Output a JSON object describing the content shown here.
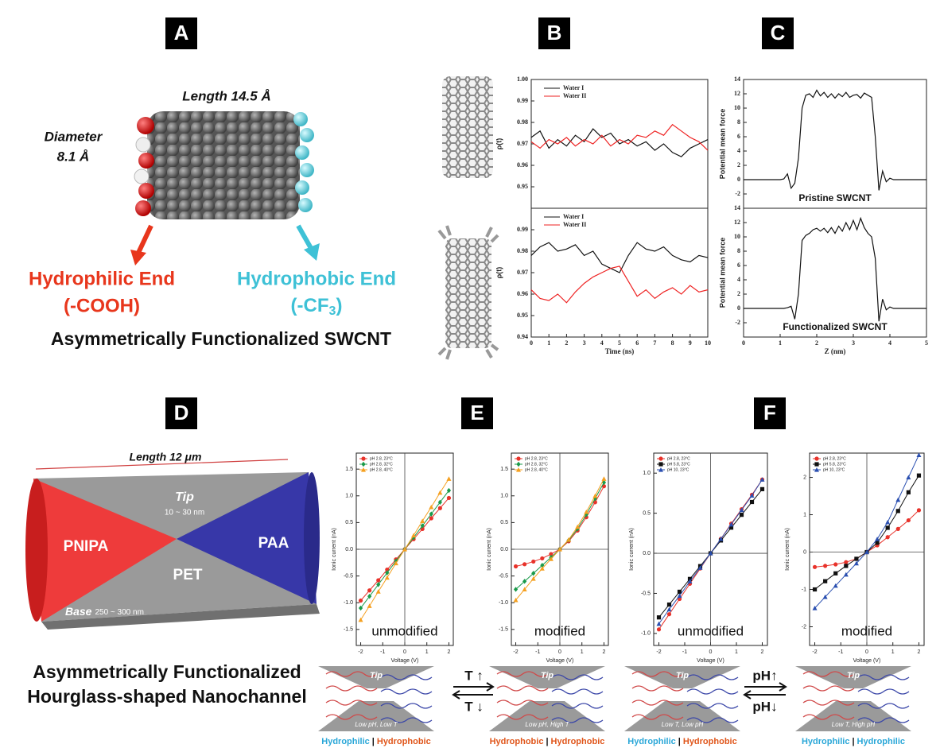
{
  "panel_labels": [
    "A",
    "B",
    "C",
    "D",
    "E",
    "F"
  ],
  "panel_a": {
    "length": "Length 14.5 Å",
    "diameter": [
      "Diameter",
      "8.1 Å"
    ],
    "hydrophilic_end": "Hydrophilic End",
    "hydrophilic_group": "(-COOH)",
    "hydrophobic_end": "Hydrophobic End",
    "hydrophobic_group": [
      "(-CF",
      "3",
      ")"
    ],
    "caption": "Asymmetrically Functionalized SWCNT"
  },
  "panel_d": {
    "length": "Length 12 μm",
    "tip": "Tip",
    "tip_size": "10 ~ 30 nm",
    "left": "PNIPA",
    "middle": "PET",
    "right": "PAA",
    "base": "Base",
    "base_size": "250 ~ 300 nm",
    "caption": [
      "Asymmetrically Functionalized",
      "Hourglass-shaped Nanochannel"
    ]
  },
  "schematics": [
    {
      "tip": "Tip",
      "condition": "Low pH, Low T",
      "caption": [
        {
          "text": "Hydrophilic",
          "color": "#2aa7d8"
        },
        {
          "text": "|",
          "color": "#111111"
        },
        {
          "text": "Hydrophobic",
          "color": "#e0561b"
        }
      ]
    },
    {
      "tip": "Tip",
      "condition": "Low pH, High T",
      "caption": [
        {
          "text": "Hydrophobic",
          "color": "#e0561b"
        },
        {
          "text": "|",
          "color": "#111111"
        },
        {
          "text": "Hydrophobic",
          "color": "#e0561b"
        }
      ]
    },
    {
      "tip": "Tip",
      "condition": "Low T, Low pH",
      "caption": [
        {
          "text": "Hydrophilic",
          "color": "#2aa7d8"
        },
        {
          "text": "|",
          "color": "#111111"
        },
        {
          "text": "Hydrophobic",
          "color": "#e0561b"
        }
      ]
    },
    {
      "tip": "Tip",
      "condition": "Low T, High pH",
      "caption": [
        {
          "text": "Hydrophilic",
          "color": "#2aa7d8"
        },
        {
          "text": "|",
          "color": "#111111"
        },
        {
          "text": "Hydrophilic",
          "color": "#2aa7d8"
        }
      ]
    }
  ],
  "switches": [
    {
      "up": "T ↑",
      "down": "T ↓"
    },
    {
      "up": "pH↑",
      "down": "pH↓"
    }
  ],
  "chart_data": [
    {
      "type": "line",
      "ylabel": "ρ(t)",
      "legend": true,
      "x": [
        0,
        0.5,
        1,
        1.5,
        2,
        2.5,
        3,
        3.5,
        4,
        4.5,
        5,
        5.5,
        6,
        6.5,
        7,
        7.5,
        8,
        8.5,
        9,
        9.5,
        10
      ],
      "series": [
        {
          "name": "Water I",
          "color": "#111111",
          "values": [
            0.973,
            0.976,
            0.968,
            0.972,
            0.969,
            0.974,
            0.971,
            0.977,
            0.973,
            0.975,
            0.97,
            0.972,
            0.969,
            0.971,
            0.967,
            0.97,
            0.966,
            0.964,
            0.968,
            0.97,
            0.972
          ]
        },
        {
          "name": "Water II",
          "color": "#ee2222",
          "values": [
            0.971,
            0.968,
            0.972,
            0.97,
            0.973,
            0.969,
            0.972,
            0.97,
            0.974,
            0.969,
            0.972,
            0.97,
            0.974,
            0.973,
            0.976,
            0.974,
            0.979,
            0.976,
            0.973,
            0.971,
            0.967
          ]
        }
      ],
      "xlim": [
        0,
        10
      ],
      "ylim": [
        0.94,
        1.0
      ],
      "yticks": [
        0.95,
        0.96,
        0.97,
        0.98,
        0.99,
        {
          "value": 1,
          "label": "1.00"
        }
      ]
    },
    {
      "type": "line",
      "ylabel": "ρ(t)",
      "xlabel": "Time (ns)",
      "legend": true,
      "x": [
        0,
        0.5,
        1,
        1.5,
        2,
        2.5,
        3,
        3.5,
        4,
        4.5,
        5,
        5.5,
        6,
        6.5,
        7,
        7.5,
        8,
        8.5,
        9,
        9.5,
        10
      ],
      "series": [
        {
          "name": "Water I",
          "color": "#111111",
          "values": [
            0.978,
            0.982,
            0.984,
            0.98,
            0.981,
            0.983,
            0.978,
            0.98,
            0.974,
            0.972,
            0.97,
            0.978,
            0.984,
            0.981,
            0.98,
            0.982,
            0.978,
            0.976,
            0.975,
            0.978,
            0.977
          ]
        },
        {
          "name": "Water II",
          "color": "#ee2222",
          "values": [
            0.962,
            0.958,
            0.957,
            0.96,
            0.956,
            0.961,
            0.965,
            0.968,
            0.97,
            0.972,
            0.973,
            0.966,
            0.959,
            0.962,
            0.958,
            0.961,
            0.963,
            0.96,
            0.964,
            0.961,
            0.962
          ]
        }
      ],
      "xlim": [
        0,
        10
      ],
      "ylim": [
        0.94,
        1.0
      ],
      "xticks": [
        0,
        1,
        2,
        3,
        4,
        5,
        6,
        7,
        8,
        9,
        10
      ],
      "yticks": [
        0.94,
        0.95,
        0.96,
        0.97,
        0.98,
        0.99
      ]
    },
    {
      "type": "line",
      "ylabel": "Potential mean force",
      "annotation": "Pristine SWCNT",
      "x": [
        0,
        0.1,
        0.2,
        0.3,
        0.4,
        0.5,
        0.6,
        0.7,
        0.8,
        0.9,
        1,
        1.1,
        1.2,
        1.3,
        1.4,
        1.5,
        1.6,
        1.7,
        1.8,
        1.9,
        2,
        2.1,
        2.2,
        2.3,
        2.4,
        2.5,
        2.6,
        2.7,
        2.8,
        2.9,
        3,
        3.1,
        3.2,
        3.3,
        3.4,
        3.5,
        3.6,
        3.7,
        3.8,
        3.9,
        4,
        4.1,
        4.2,
        4.3,
        4.4,
        4.5,
        4.6,
        4.7,
        4.8,
        4.9,
        5
      ],
      "series": [
        {
          "color": "#111111",
          "values": [
            0,
            0,
            0,
            0,
            0,
            0,
            0,
            0,
            0,
            0,
            0,
            0.1,
            0.8,
            -1.2,
            -0.5,
            3,
            10,
            11.8,
            12,
            11.5,
            12.5,
            11.7,
            12.2,
            11.5,
            12,
            11.4,
            12,
            11.6,
            12.2,
            11.5,
            11.8,
            11.9,
            11.4,
            12.1,
            11.8,
            11.5,
            6,
            -1.5,
            1.2,
            -0.3,
            0.2,
            0,
            0,
            0,
            0,
            0,
            0,
            0,
            0,
            0,
            0
          ]
        }
      ],
      "xlim": [
        0,
        5
      ],
      "ylim": [
        -4,
        14
      ],
      "yticks": [
        -2,
        0,
        2,
        4,
        6,
        8,
        10,
        12,
        14
      ]
    },
    {
      "type": "line",
      "ylabel": "Potential mean force",
      "xlabel": "Z (nm)",
      "annotation": "Functionalized SWCNT",
      "x": [
        0,
        0.1,
        0.2,
        0.3,
        0.4,
        0.5,
        0.6,
        0.7,
        0.8,
        0.9,
        1,
        1.1,
        1.2,
        1.3,
        1.4,
        1.5,
        1.6,
        1.7,
        1.8,
        1.9,
        2,
        2.1,
        2.2,
        2.3,
        2.4,
        2.5,
        2.6,
        2.7,
        2.8,
        2.9,
        3,
        3.1,
        3.2,
        3.3,
        3.4,
        3.5,
        3.6,
        3.7,
        3.8,
        3.9,
        4,
        4.1,
        4.2,
        4.3,
        4.4,
        4.5,
        4.6,
        4.7,
        4.8,
        4.9,
        5
      ],
      "series": [
        {
          "color": "#111111",
          "values": [
            0,
            0,
            0,
            0,
            0,
            0,
            0,
            0,
            0,
            0,
            0,
            0,
            0.1,
            0.3,
            -1.5,
            2,
            9.5,
            10.2,
            10.5,
            11,
            11.2,
            10.8,
            11.2,
            10.6,
            11.3,
            10.5,
            11.5,
            10.8,
            12,
            11,
            12.3,
            11,
            12.6,
            11.3,
            10.5,
            10,
            7,
            -1.8,
            1.3,
            -0.2,
            0.2,
            0,
            0,
            0,
            0,
            0,
            0,
            0,
            0,
            0,
            0
          ]
        }
      ],
      "xlim": [
        0,
        5
      ],
      "ylim": [
        -4,
        14
      ],
      "xticks": [
        0,
        1,
        2,
        3,
        4,
        5
      ],
      "yticks": [
        -2,
        0,
        2,
        4,
        6,
        8,
        10,
        12,
        14
      ]
    },
    {
      "type": "line",
      "ylabel": "Ionic current (nA)",
      "xlabel": "Voltage (V)",
      "annotation": "unmodified",
      "legend": true,
      "zero_lines": true,
      "x": [
        -2,
        -1.6,
        -1.2,
        -0.8,
        -0.4,
        0,
        0.4,
        0.8,
        1.2,
        1.6,
        2
      ],
      "series": [
        {
          "name": "pH 2.8, 23°C",
          "color": "#e8322a",
          "marker": "circle",
          "values": [
            -0.96,
            -0.77,
            -0.58,
            -0.38,
            -0.19,
            0,
            0.19,
            0.38,
            0.58,
            0.77,
            0.96
          ]
        },
        {
          "name": "pH 2.8, 32°C",
          "color": "#1a9a4a",
          "marker": "diamond",
          "values": [
            -1.1,
            -0.88,
            -0.66,
            -0.44,
            -0.22,
            0,
            0.22,
            0.44,
            0.66,
            0.88,
            1.1
          ]
        },
        {
          "name": "pH 2.8, 40°C",
          "color": "#f5a020",
          "marker": "triangle",
          "values": [
            -1.32,
            -1.06,
            -0.79,
            -0.53,
            -0.26,
            0,
            0.26,
            0.53,
            0.79,
            1.06,
            1.32
          ]
        }
      ],
      "xlim": [
        -2.2,
        2.2
      ],
      "ylim": [
        -1.8,
        1.8
      ],
      "xticks": [
        -2,
        -1,
        0,
        1,
        2
      ],
      "yticks": [
        -1.5,
        {
          "value": -1,
          "label": "-1.0"
        },
        -0.5,
        {
          "value": 0,
          "label": "0.0"
        },
        0.5,
        {
          "value": 1,
          "label": "1.0"
        },
        1.5
      ]
    },
    {
      "type": "line",
      "ylabel": "Ionic current (nA)",
      "xlabel": "Voltage (V)",
      "annotation": "modified",
      "legend": true,
      "zero_lines": true,
      "x": [
        -2,
        -1.6,
        -1.2,
        -0.8,
        -0.4,
        0,
        0.4,
        0.8,
        1.2,
        1.6,
        2
      ],
      "series": [
        {
          "name": "pH 2.8, 23°C",
          "color": "#e8322a",
          "marker": "circle",
          "values": [
            -0.32,
            -0.28,
            -0.23,
            -0.17,
            -0.09,
            0,
            0.15,
            0.35,
            0.6,
            0.88,
            1.18
          ]
        },
        {
          "name": "pH 2.8, 32°C",
          "color": "#1a9a4a",
          "marker": "diamond",
          "values": [
            -0.75,
            -0.6,
            -0.45,
            -0.3,
            -0.15,
            0,
            0.17,
            0.38,
            0.65,
            0.95,
            1.25
          ]
        },
        {
          "name": "pH 2.8, 40°C",
          "color": "#f5a020",
          "marker": "triangle",
          "values": [
            -0.95,
            -0.75,
            -0.55,
            -0.36,
            -0.18,
            0,
            0.18,
            0.42,
            0.7,
            1.0,
            1.32
          ]
        }
      ],
      "xlim": [
        -2.2,
        2.2
      ],
      "ylim": [
        -1.8,
        1.8
      ],
      "xticks": [
        -2,
        -1,
        0,
        1,
        2
      ],
      "yticks": [
        -1.5,
        {
          "value": -1,
          "label": "-1.0"
        },
        -0.5,
        {
          "value": 0,
          "label": "0.0"
        },
        0.5,
        {
          "value": 1,
          "label": "1.0"
        },
        1.5
      ]
    },
    {
      "type": "line",
      "ylabel": "Ionic current (nA)",
      "xlabel": "Voltage (V)",
      "annotation": "unmodified",
      "legend": true,
      "zero_lines": true,
      "x": [
        -2,
        -1.6,
        -1.2,
        -0.8,
        -0.4,
        0,
        0.4,
        0.8,
        1.2,
        1.6,
        2
      ],
      "series": [
        {
          "name": "pH 2.8, 23°C",
          "color": "#e8322a",
          "marker": "circle",
          "values": [
            -0.95,
            -0.76,
            -0.57,
            -0.38,
            -0.19,
            0,
            0.18,
            0.37,
            0.55,
            0.73,
            0.92
          ]
        },
        {
          "name": "pH 5.8, 23°C",
          "color": "#111111",
          "marker": "square",
          "values": [
            -0.8,
            -0.64,
            -0.48,
            -0.32,
            -0.16,
            0,
            0.16,
            0.32,
            0.48,
            0.64,
            0.8
          ]
        },
        {
          "name": "pH 10, 23°C",
          "color": "#2a4fb0",
          "marker": "triangle",
          "values": [
            -0.88,
            -0.7,
            -0.53,
            -0.35,
            -0.18,
            0,
            0.18,
            0.36,
            0.54,
            0.72,
            0.92
          ]
        }
      ],
      "xlim": [
        -2.2,
        2.2
      ],
      "ylim": [
        -1.15,
        1.25
      ],
      "xticks": [
        -2,
        -1,
        0,
        1,
        2
      ],
      "yticks": [
        {
          "value": -1,
          "label": "-1.0"
        },
        -0.5,
        {
          "value": 0,
          "label": "0.0"
        },
        0.5,
        {
          "value": 1,
          "label": "1.0"
        }
      ]
    },
    {
      "type": "line",
      "ylabel": "Ionic current (nA)",
      "xlabel": "Voltage (V)",
      "annotation": "modified",
      "legend": true,
      "zero_lines": true,
      "x": [
        -2,
        -1.6,
        -1.2,
        -0.8,
        -0.4,
        0,
        0.4,
        0.8,
        1.2,
        1.6,
        2
      ],
      "series": [
        {
          "name": "pH 2.8, 23°C",
          "color": "#e8322a",
          "marker": "circle",
          "values": [
            -0.4,
            -0.37,
            -0.33,
            -0.27,
            -0.18,
            0,
            0.18,
            0.4,
            0.62,
            0.85,
            1.12
          ]
        },
        {
          "name": "pH 5.8, 23°C",
          "color": "#111111",
          "marker": "square",
          "values": [
            -1.0,
            -0.78,
            -0.57,
            -0.37,
            -0.18,
            0,
            0.25,
            0.65,
            1.1,
            1.6,
            2.05
          ]
        },
        {
          "name": "pH 10, 23°C",
          "color": "#2a4fb0",
          "marker": "triangle",
          "values": [
            -1.5,
            -1.2,
            -0.9,
            -0.6,
            -0.3,
            0,
            0.35,
            0.8,
            1.4,
            2.0,
            2.6
          ]
        }
      ],
      "xlim": [
        -2.2,
        2.2
      ],
      "ylim": [
        -2.5,
        2.65
      ],
      "xticks": [
        -2,
        -1,
        0,
        1,
        2
      ],
      "yticks": [
        -2,
        -1,
        0,
        1,
        2
      ]
    }
  ]
}
